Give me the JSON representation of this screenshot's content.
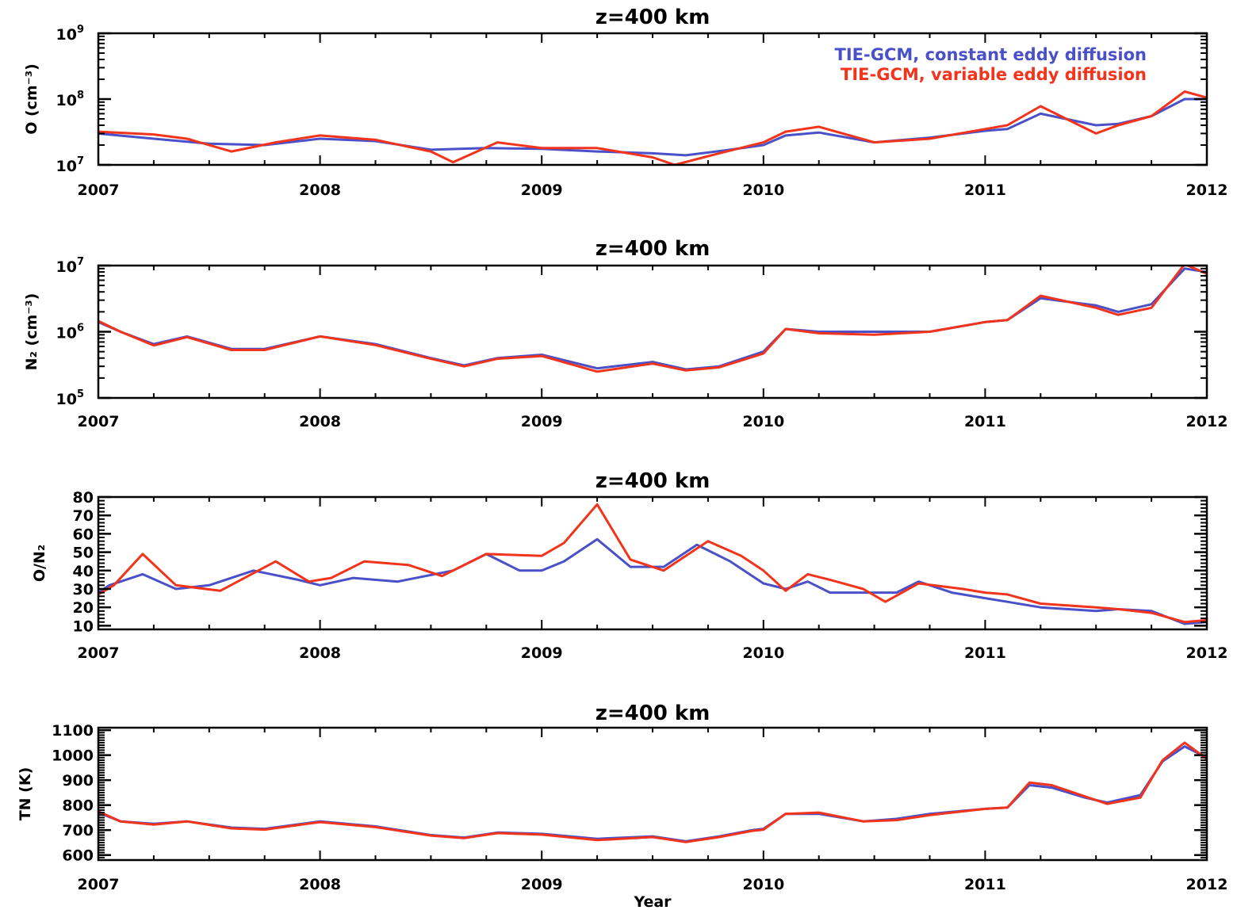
{
  "colors": {
    "series_constant": "#4a50c8",
    "series_variable": "#f2341c",
    "axis": "#000000"
  },
  "chart_data": [
    {
      "type": "line",
      "title": "z=400 km",
      "ylabel": "O (cm⁻³)",
      "xlabel": "",
      "yscale": "log",
      "xlim": [
        2007,
        2012
      ],
      "ylim": [
        10000000.0,
        1000000000.0
      ],
      "x_ticks": [
        "2007",
        "2008",
        "2009",
        "2010",
        "2011",
        "2012"
      ],
      "y_ticks": [
        {
          "v": 10000000.0,
          "base": "10",
          "exp": "7"
        },
        {
          "v": 100000000.0,
          "base": "10",
          "exp": "8"
        },
        {
          "v": 1000000000.0,
          "base": "10",
          "exp": "9"
        }
      ],
      "legend": {
        "position": "top-right",
        "entries": [
          "TIE-GCM, constant eddy diffusion",
          "TIE-GCM, variable eddy diffusion"
        ]
      },
      "series": [
        {
          "name": "TIE-GCM, constant eddy diffusion",
          "x": [
            2007.0,
            2007.25,
            2007.5,
            2007.75,
            2008.0,
            2008.25,
            2008.5,
            2008.75,
            2009.0,
            2009.25,
            2009.5,
            2009.65,
            2009.85,
            2010.0,
            2010.1,
            2010.25,
            2010.5,
            2010.75,
            2011.0,
            2011.1,
            2011.25,
            2011.5,
            2011.6,
            2011.75,
            2011.9,
            2012.0
          ],
          "values": [
            30000000.0,
            25000000.0,
            21000000.0,
            20000000.0,
            25000000.0,
            23000000.0,
            17000000.0,
            18000000.0,
            17500000.0,
            16000000.0,
            15000000.0,
            14000000.0,
            17000000.0,
            20000000.0,
            28000000.0,
            31000000.0,
            22000000.0,
            26000000.0,
            33000000.0,
            35000000.0,
            60000000.0,
            40000000.0,
            42000000.0,
            55000000.0,
            100000000.0,
            100000000.0
          ]
        },
        {
          "name": "TIE-GCM, variable eddy diffusion",
          "x": [
            2007.0,
            2007.25,
            2007.4,
            2007.6,
            2007.8,
            2008.0,
            2008.25,
            2008.5,
            2008.6,
            2008.8,
            2009.0,
            2009.25,
            2009.5,
            2009.6,
            2009.8,
            2010.0,
            2010.1,
            2010.25,
            2010.5,
            2010.75,
            2011.0,
            2011.1,
            2011.25,
            2011.5,
            2011.6,
            2011.75,
            2011.9,
            2012.0
          ],
          "values": [
            32000000.0,
            29000000.0,
            25000000.0,
            16000000.0,
            22000000.0,
            28000000.0,
            24000000.0,
            16000000.0,
            11000000.0,
            22000000.0,
            18000000.0,
            18000000.0,
            13000000.0,
            10000000.0,
            15000000.0,
            22000000.0,
            32000000.0,
            38000000.0,
            22000000.0,
            25000000.0,
            35000000.0,
            40000000.0,
            78000000.0,
            30000000.0,
            40000000.0,
            55000000.0,
            130000000.0,
            105000000.0
          ]
        }
      ]
    },
    {
      "type": "line",
      "title": "z=400 km",
      "ylabel": "N₂ (cm⁻³)",
      "xlabel": "",
      "yscale": "log",
      "xlim": [
        2007,
        2012
      ],
      "ylim": [
        100000.0,
        10000000.0
      ],
      "x_ticks": [
        "2007",
        "2008",
        "2009",
        "2010",
        "2011",
        "2012"
      ],
      "y_ticks": [
        {
          "v": 100000.0,
          "base": "10",
          "exp": "5"
        },
        {
          "v": 1000000.0,
          "base": "10",
          "exp": "6"
        },
        {
          "v": 10000000.0,
          "base": "10",
          "exp": "7"
        }
      ],
      "series": [
        {
          "name": "TIE-GCM, constant eddy diffusion",
          "x": [
            2007.0,
            2007.1,
            2007.25,
            2007.4,
            2007.6,
            2007.75,
            2008.0,
            2008.25,
            2008.5,
            2008.65,
            2008.8,
            2009.0,
            2009.25,
            2009.5,
            2009.65,
            2009.8,
            2010.0,
            2010.1,
            2010.25,
            2010.5,
            2010.75,
            2011.0,
            2011.1,
            2011.25,
            2011.5,
            2011.6,
            2011.75,
            2011.9,
            2012.0
          ],
          "values": [
            1400000.0,
            1000000.0,
            650000.0,
            850000.0,
            550000.0,
            550000.0,
            850000.0,
            650000.0,
            400000.0,
            310000.0,
            400000.0,
            450000.0,
            280000.0,
            350000.0,
            270000.0,
            300000.0,
            500000.0,
            1100000.0,
            1000000.0,
            1000000.0,
            1000000.0,
            1400000.0,
            1500000.0,
            3200000.0,
            2500000.0,
            2000000.0,
            2600000.0,
            9000000.0,
            8000000.0
          ]
        },
        {
          "name": "TIE-GCM, variable eddy diffusion",
          "x": [
            2007.0,
            2007.1,
            2007.25,
            2007.4,
            2007.6,
            2007.75,
            2008.0,
            2008.25,
            2008.5,
            2008.65,
            2008.8,
            2009.0,
            2009.25,
            2009.5,
            2009.65,
            2009.8,
            2010.0,
            2010.1,
            2010.25,
            2010.5,
            2010.75,
            2011.0,
            2011.1,
            2011.25,
            2011.5,
            2011.6,
            2011.75,
            2011.9,
            2012.0
          ],
          "values": [
            1450000.0,
            1000000.0,
            620000.0,
            830000.0,
            530000.0,
            530000.0,
            850000.0,
            630000.0,
            390000.0,
            300000.0,
            390000.0,
            430000.0,
            250000.0,
            330000.0,
            260000.0,
            290000.0,
            470000.0,
            1100000.0,
            950000.0,
            900000.0,
            1000000.0,
            1400000.0,
            1500000.0,
            3500000.0,
            2300000.0,
            1800000.0,
            2300000.0,
            10500000.0,
            7500000.0
          ]
        }
      ]
    },
    {
      "type": "line",
      "title": "z=400 km",
      "ylabel": "O/N₂",
      "xlabel": "",
      "yscale": "linear",
      "xlim": [
        2007,
        2012
      ],
      "ylim": [
        8,
        80
      ],
      "x_ticks": [
        "2007",
        "2008",
        "2009",
        "2010",
        "2011",
        "2012"
      ],
      "y_ticks": [
        {
          "v": 10,
          "label": "10"
        },
        {
          "v": 20,
          "label": "20"
        },
        {
          "v": 30,
          "label": "30"
        },
        {
          "v": 40,
          "label": "40"
        },
        {
          "v": 50,
          "label": "50"
        },
        {
          "v": 60,
          "label": "60"
        },
        {
          "v": 70,
          "label": "70"
        },
        {
          "v": 80,
          "label": "80"
        }
      ],
      "series": [
        {
          "name": "TIE-GCM, constant eddy diffusion",
          "x": [
            2007.0,
            2007.05,
            2007.2,
            2007.35,
            2007.5,
            2007.7,
            2007.9,
            2008.0,
            2008.15,
            2008.35,
            2008.6,
            2008.75,
            2008.9,
            2009.0,
            2009.1,
            2009.25,
            2009.4,
            2009.55,
            2009.7,
            2009.85,
            2010.0,
            2010.1,
            2010.2,
            2010.3,
            2010.5,
            2010.6,
            2010.7,
            2010.85,
            2011.0,
            2011.1,
            2011.25,
            2011.5,
            2011.6,
            2011.75,
            2011.9,
            2012.0
          ],
          "values": [
            28,
            32,
            38,
            30,
            32,
            40,
            35,
            32,
            36,
            34,
            40,
            49,
            40,
            40,
            45,
            57,
            42,
            42,
            54,
            45,
            33,
            30,
            34,
            28,
            28,
            28,
            34,
            28,
            25,
            23,
            20,
            18,
            19,
            18,
            11,
            12
          ]
        },
        {
          "name": "TIE-GCM, variable eddy diffusion",
          "x": [
            2007.0,
            2007.07,
            2007.2,
            2007.35,
            2007.55,
            2007.8,
            2007.95,
            2008.05,
            2008.2,
            2008.4,
            2008.55,
            2008.75,
            2009.0,
            2009.1,
            2009.25,
            2009.4,
            2009.55,
            2009.75,
            2009.9,
            2010.0,
            2010.1,
            2010.2,
            2010.3,
            2010.45,
            2010.55,
            2010.7,
            2010.9,
            2011.0,
            2011.1,
            2011.25,
            2011.5,
            2011.6,
            2011.75,
            2011.9,
            2012.0
          ],
          "values": [
            27,
            32,
            49,
            32,
            29,
            45,
            34,
            36,
            45,
            43,
            37,
            49,
            48,
            55,
            76,
            46,
            40,
            56,
            48,
            40,
            29,
            38,
            35,
            30,
            23,
            33,
            30,
            28,
            27,
            22,
            20,
            19,
            17,
            12,
            13
          ]
        }
      ]
    },
    {
      "type": "line",
      "title": "z=400 km",
      "ylabel": "TN (K)",
      "xlabel": "Year",
      "yscale": "linear",
      "xlim": [
        2007,
        2012
      ],
      "ylim": [
        580,
        1110
      ],
      "x_ticks": [
        "2007",
        "2008",
        "2009",
        "2010",
        "2011",
        "2012"
      ],
      "y_ticks": [
        {
          "v": 600,
          "label": "600"
        },
        {
          "v": 700,
          "label": "700"
        },
        {
          "v": 800,
          "label": "800"
        },
        {
          "v": 900,
          "label": "900"
        },
        {
          "v": 1000,
          "label": "1000"
        },
        {
          "v": 1100,
          "label": "1100"
        }
      ],
      "series": [
        {
          "name": "TIE-GCM, constant eddy diffusion",
          "x": [
            2007.0,
            2007.1,
            2007.25,
            2007.4,
            2007.6,
            2007.75,
            2008.0,
            2008.25,
            2008.5,
            2008.65,
            2008.8,
            2009.0,
            2009.25,
            2009.5,
            2009.65,
            2009.8,
            2009.95,
            2010.0,
            2010.1,
            2010.25,
            2010.45,
            2010.6,
            2010.75,
            2011.0,
            2011.1,
            2011.2,
            2011.3,
            2011.45,
            2011.55,
            2011.7,
            2011.8,
            2011.9,
            2012.0
          ],
          "values": [
            770,
            735,
            725,
            735,
            710,
            705,
            735,
            715,
            680,
            670,
            690,
            685,
            665,
            675,
            655,
            675,
            700,
            705,
            765,
            765,
            735,
            745,
            765,
            785,
            790,
            880,
            870,
            830,
            810,
            840,
            975,
            1035,
            990
          ]
        },
        {
          "name": "TIE-GCM, variable eddy diffusion",
          "x": [
            2007.0,
            2007.1,
            2007.25,
            2007.4,
            2007.6,
            2007.75,
            2008.0,
            2008.25,
            2008.5,
            2008.65,
            2008.8,
            2009.0,
            2009.25,
            2009.5,
            2009.65,
            2009.8,
            2009.95,
            2010.0,
            2010.1,
            2010.25,
            2010.45,
            2010.6,
            2010.75,
            2011.0,
            2011.1,
            2011.2,
            2011.3,
            2011.45,
            2011.55,
            2011.7,
            2011.8,
            2011.9,
            2012.0
          ],
          "values": [
            775,
            735,
            722,
            735,
            707,
            702,
            732,
            712,
            678,
            668,
            688,
            682,
            660,
            672,
            652,
            672,
            697,
            702,
            765,
            770,
            735,
            740,
            760,
            785,
            790,
            890,
            880,
            835,
            805,
            830,
            980,
            1050,
            985
          ]
        }
      ]
    }
  ]
}
